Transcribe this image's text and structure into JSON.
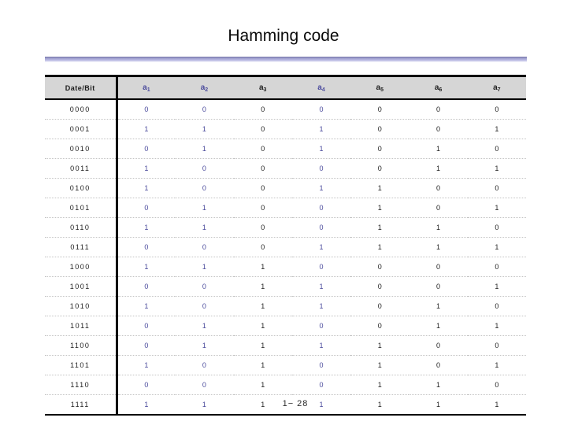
{
  "slide": {
    "title": "Hamming code"
  },
  "colors": {
    "parity_text": "#4a4a9c",
    "body_text": "#1c1c1c",
    "rule_accent": "#a9a9d6",
    "header_bg": "#dedede",
    "border": "#000000"
  },
  "table": {
    "corner_header": "Date/Bit",
    "columns": [
      {
        "base": "a",
        "sub": "1",
        "parity": true
      },
      {
        "base": "a",
        "sub": "2",
        "parity": true
      },
      {
        "base": "a",
        "sub": "3",
        "parity": false
      },
      {
        "base": "a",
        "sub": "4",
        "parity": true
      },
      {
        "base": "a",
        "sub": "5",
        "parity": false
      },
      {
        "base": "a",
        "sub": "6",
        "parity": false
      },
      {
        "base": "a",
        "sub": "7",
        "parity": false
      }
    ],
    "rows": [
      {
        "data": "0000",
        "bits": [
          0,
          0,
          0,
          0,
          0,
          0,
          0
        ]
      },
      {
        "data": "0001",
        "bits": [
          1,
          1,
          0,
          1,
          0,
          0,
          1
        ]
      },
      {
        "data": "0010",
        "bits": [
          0,
          1,
          0,
          1,
          0,
          1,
          0
        ]
      },
      {
        "data": "0011",
        "bits": [
          1,
          0,
          0,
          0,
          0,
          1,
          1
        ]
      },
      {
        "data": "0100",
        "bits": [
          1,
          0,
          0,
          1,
          1,
          0,
          0
        ]
      },
      {
        "data": "0101",
        "bits": [
          0,
          1,
          0,
          0,
          1,
          0,
          1
        ]
      },
      {
        "data": "0110",
        "bits": [
          1,
          1,
          0,
          0,
          1,
          1,
          0
        ]
      },
      {
        "data": "0111",
        "bits": [
          0,
          0,
          0,
          1,
          1,
          1,
          1
        ]
      },
      {
        "data": "1000",
        "bits": [
          1,
          1,
          1,
          0,
          0,
          0,
          0
        ]
      },
      {
        "data": "1001",
        "bits": [
          0,
          0,
          1,
          1,
          0,
          0,
          1
        ]
      },
      {
        "data": "1010",
        "bits": [
          1,
          0,
          1,
          1,
          0,
          1,
          0
        ]
      },
      {
        "data": "1011",
        "bits": [
          0,
          1,
          1,
          0,
          0,
          1,
          1
        ]
      },
      {
        "data": "1100",
        "bits": [
          0,
          1,
          1,
          1,
          1,
          0,
          0
        ]
      },
      {
        "data": "1101",
        "bits": [
          1,
          0,
          1,
          0,
          1,
          0,
          1
        ]
      },
      {
        "data": "1110",
        "bits": [
          0,
          0,
          1,
          0,
          1,
          1,
          0
        ]
      },
      {
        "data": "1111",
        "bits": [
          1,
          1,
          1,
          1,
          1,
          1,
          1
        ]
      }
    ]
  },
  "footer": {
    "page_label": "1− 28"
  }
}
